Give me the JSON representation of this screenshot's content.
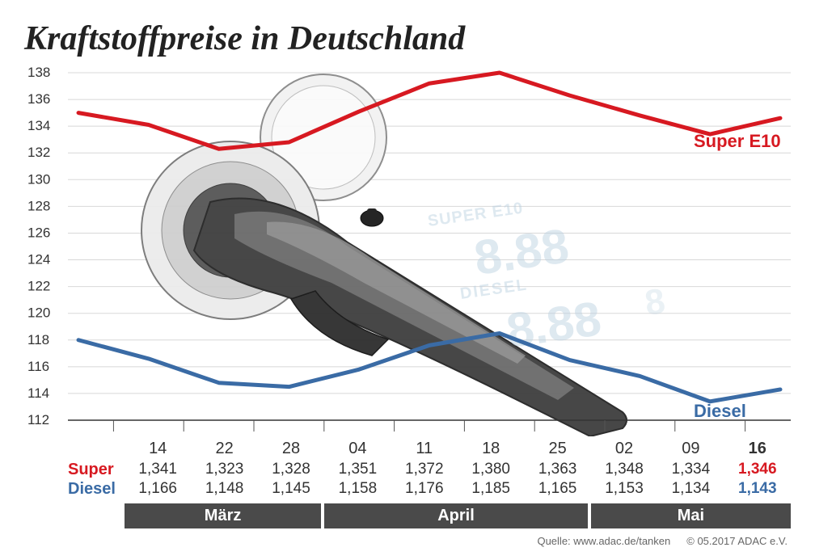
{
  "title": "Kraftstoffpreise in Deutschland",
  "chart": {
    "type": "line",
    "background_color": "#ffffff",
    "grid_color": "#d8d8d8",
    "y_axis": {
      "min": 112,
      "max": 138,
      "tick_step": 2,
      "ticks": [
        112,
        114,
        116,
        118,
        120,
        122,
        124,
        126,
        128,
        130,
        132,
        134,
        136,
        138
      ],
      "label_fontsize": 17,
      "label_color": "#333333"
    },
    "x_dates": [
      "14",
      "22",
      "28",
      "04",
      "11",
      "18",
      "25",
      "02",
      "09",
      "16"
    ],
    "x_date_bold_idx": 9,
    "series": {
      "super": {
        "label": "Super E10",
        "color": "#d71921",
        "line_width": 5,
        "values": [
          135.0,
          134.1,
          132.3,
          132.8,
          135.1,
          137.2,
          138.0,
          136.3,
          134.8,
          133.4,
          134.6
        ]
      },
      "diesel": {
        "label": "Diesel",
        "color": "#3a6ba5",
        "line_width": 5,
        "values": [
          118.0,
          116.6,
          114.8,
          114.5,
          115.8,
          117.6,
          118.5,
          116.5,
          115.3,
          113.4,
          114.3
        ]
      }
    },
    "series_label_fontsize": 22
  },
  "table": {
    "row_labels": {
      "super": "Super",
      "diesel": "Diesel"
    },
    "row_label_colors": {
      "super": "#d71921",
      "diesel": "#3a6ba5"
    },
    "dates": [
      "14",
      "22",
      "28",
      "04",
      "11",
      "18",
      "25",
      "02",
      "09",
      "16"
    ],
    "super_row": [
      "1,341",
      "1,323",
      "1,328",
      "1,351",
      "1,372",
      "1,380",
      "1,363",
      "1,348",
      "1,334",
      "1,346"
    ],
    "diesel_row": [
      "1,166",
      "1,148",
      "1,145",
      "1,158",
      "1,176",
      "1,185",
      "1,165",
      "1,153",
      "1,134",
      "1,143"
    ],
    "highlight_idx": 9,
    "fontsize": 19
  },
  "months": {
    "labels": [
      "März",
      "April",
      "Mai"
    ],
    "spans": [
      3,
      4,
      3
    ],
    "bg_color": "#4a4a4a",
    "text_color": "#ffffff",
    "fontsize": 20
  },
  "footer": {
    "source": "Quelle: www.adac.de/tanken",
    "copyright": "© 05.2017  ADAC e.V.",
    "fontsize": 13,
    "color": "#666666"
  },
  "illustration": {
    "pump_body_color": "#3e3e3e",
    "pump_highlight_color": "#9a9a9a",
    "cap_color": "#e6e6e6",
    "digit_color": "#b9cfe0"
  }
}
